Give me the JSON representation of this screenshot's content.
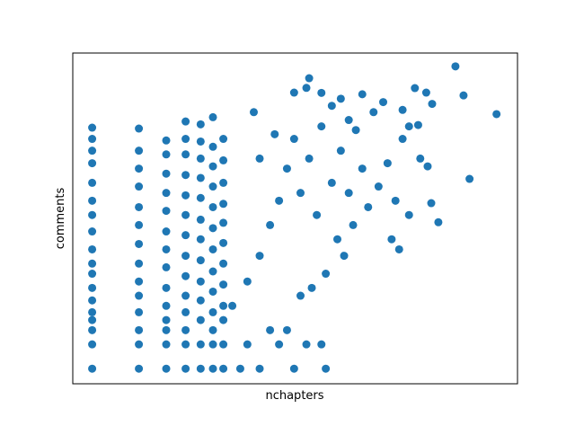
{
  "chart_data": {
    "type": "scatter",
    "xlabel": "nchapters",
    "ylabel": "comments",
    "color": "#1f77b4",
    "xscale": "log",
    "yscale": "log",
    "xlim": [
      0.75,
      550
    ],
    "ylim": [
      0.65,
      8100
    ],
    "x": [
      1,
      1,
      1,
      1,
      1,
      1,
      1,
      1,
      1,
      1,
      1,
      1,
      1,
      1,
      1,
      1,
      1,
      1,
      2,
      2,
      2,
      2,
      2,
      2,
      2,
      2,
      2,
      2,
      2,
      2,
      2,
      2,
      3,
      3,
      3,
      3,
      3,
      3,
      3,
      3,
      3,
      3,
      3,
      3,
      3,
      3,
      4,
      4,
      4,
      4,
      4,
      4,
      4,
      4,
      4,
      4,
      4,
      4,
      4,
      4,
      5,
      5,
      5,
      5,
      5,
      5,
      5,
      5,
      5,
      5,
      5,
      5,
      5,
      6,
      6,
      6,
      6,
      6,
      6,
      6,
      6,
      6,
      6,
      6,
      6,
      6,
      7,
      7,
      7,
      7,
      7,
      7,
      7,
      7,
      7,
      7,
      7,
      7,
      9,
      10,
      12,
      14,
      16,
      20,
      24,
      32,
      30,
      18,
      8,
      10,
      12,
      14,
      16,
      18,
      20,
      22,
      25,
      28,
      30,
      35,
      40,
      45,
      50,
      55,
      60,
      38,
      42,
      32,
      26,
      22,
      48,
      70,
      80,
      90,
      100,
      110,
      65,
      75,
      55,
      35,
      45,
      12,
      15,
      11,
      24,
      30,
      40,
      85,
      95,
      130,
      110,
      100,
      403,
      219,
      247,
      270,
      170,
      153,
      145,
      120,
      142,
      155,
      126,
      25,
      20
    ],
    "values": [
      1,
      2,
      3,
      4,
      5,
      7,
      10,
      15,
      20,
      30,
      50,
      80,
      120,
      200,
      350,
      500,
      700,
      965,
      1,
      2,
      3,
      5,
      8,
      12,
      20,
      35,
      60,
      100,
      180,
      300,
      500,
      940,
      1,
      2,
      3,
      4,
      6,
      10,
      18,
      30,
      50,
      90,
      150,
      260,
      450,
      670,
      1,
      2,
      3,
      5,
      8,
      14,
      25,
      45,
      80,
      140,
      250,
      450,
      700,
      1150,
      1,
      2,
      4,
      7,
      12,
      22,
      40,
      70,
      130,
      230,
      400,
      650,
      1060,
      1,
      2,
      3,
      5,
      9,
      16,
      30,
      55,
      100,
      180,
      320,
      560,
      1300,
      1,
      2,
      4,
      6,
      11,
      20,
      36,
      64,
      110,
      200,
      380,
      700,
      1,
      2,
      1,
      3,
      2,
      1,
      2,
      1,
      2,
      3,
      6,
      12,
      25,
      60,
      120,
      300,
      700,
      150,
      400,
      80,
      1000,
      200,
      500,
      150,
      900,
      300,
      100,
      40,
      25,
      15,
      10,
      8,
      60,
      180,
      350,
      120,
      700,
      80,
      1500,
      2000,
      2500,
      1800,
      1200,
      400,
      800,
      1500,
      3000,
      2600,
      2200,
      40,
      30,
      400,
      1000,
      1600,
      1420,
      5540,
      2420,
      224,
      65,
      112,
      320,
      2980,
      2620,
      1900,
      1040,
      3950,
      2620
    ]
  }
}
